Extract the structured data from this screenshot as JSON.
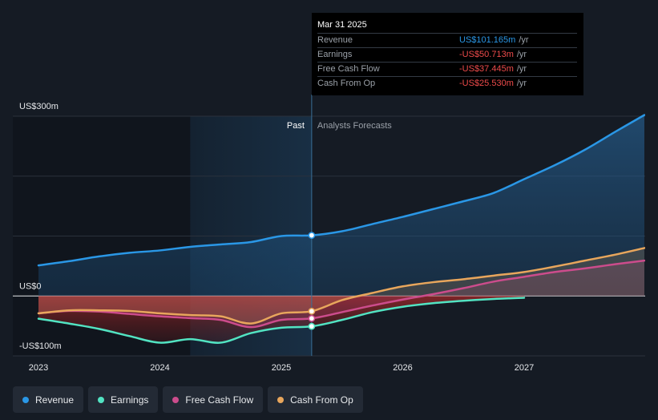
{
  "chart_data": {
    "type": "line",
    "title": "",
    "x_ticks": [
      "2023",
      "2024",
      "2025",
      "2026",
      "2027"
    ],
    "y_ticks": [
      "US$300m",
      "US$0",
      "-US$100m"
    ],
    "ylim": [
      -100,
      300
    ],
    "xlim": [
      2022.83,
      2027.99
    ],
    "divider_x": 2025.25,
    "past_highlight_start": 2024.25,
    "past_label": "Past",
    "forecast_label": "Analysts Forecasts",
    "series": [
      {
        "name": "Revenue",
        "color": "#2a97e6",
        "points": [
          [
            2023.0,
            51
          ],
          [
            2023.25,
            58
          ],
          [
            2023.5,
            66
          ],
          [
            2023.75,
            72
          ],
          [
            2024.0,
            76
          ],
          [
            2024.25,
            82
          ],
          [
            2024.5,
            86
          ],
          [
            2024.75,
            90
          ],
          [
            2025.0,
            100
          ],
          [
            2025.25,
            101.165
          ],
          [
            2025.5,
            108
          ],
          [
            2025.75,
            120
          ],
          [
            2026.0,
            132
          ],
          [
            2026.25,
            145
          ],
          [
            2026.5,
            158
          ],
          [
            2026.75,
            172
          ],
          [
            2027.0,
            195
          ],
          [
            2027.25,
            218
          ],
          [
            2027.5,
            244
          ],
          [
            2027.75,
            274
          ],
          [
            2027.99,
            302
          ]
        ]
      },
      {
        "name": "Earnings",
        "color": "#52e3c2",
        "points": [
          [
            2023.0,
            -38
          ],
          [
            2023.25,
            -46
          ],
          [
            2023.5,
            -55
          ],
          [
            2023.75,
            -67
          ],
          [
            2024.0,
            -78
          ],
          [
            2024.25,
            -72
          ],
          [
            2024.5,
            -78
          ],
          [
            2024.75,
            -62
          ],
          [
            2025.0,
            -53
          ],
          [
            2025.25,
            -50.713
          ],
          [
            2025.5,
            -40
          ],
          [
            2025.75,
            -27
          ],
          [
            2026.0,
            -18
          ],
          [
            2026.25,
            -12
          ],
          [
            2026.5,
            -8
          ],
          [
            2026.75,
            -5
          ],
          [
            2027.0,
            -3
          ]
        ]
      },
      {
        "name": "Free Cash Flow",
        "color": "#cc4c8c",
        "points": [
          [
            2023.0,
            -29
          ],
          [
            2023.25,
            -25
          ],
          [
            2023.5,
            -26
          ],
          [
            2023.75,
            -30
          ],
          [
            2024.0,
            -34
          ],
          [
            2024.25,
            -37
          ],
          [
            2024.5,
            -40
          ],
          [
            2024.75,
            -52
          ],
          [
            2025.0,
            -40
          ],
          [
            2025.25,
            -37.445
          ],
          [
            2025.5,
            -27
          ],
          [
            2025.75,
            -16
          ],
          [
            2026.0,
            -6
          ],
          [
            2026.25,
            3
          ],
          [
            2026.5,
            13
          ],
          [
            2026.75,
            24
          ],
          [
            2027.0,
            32
          ],
          [
            2027.25,
            40
          ],
          [
            2027.5,
            46
          ],
          [
            2027.75,
            53
          ],
          [
            2027.99,
            59
          ]
        ]
      },
      {
        "name": "Cash From Op",
        "color": "#e8a65c",
        "points": [
          [
            2023.0,
            -29
          ],
          [
            2023.25,
            -24
          ],
          [
            2023.5,
            -24
          ],
          [
            2023.75,
            -25
          ],
          [
            2024.0,
            -29
          ],
          [
            2024.25,
            -32
          ],
          [
            2024.5,
            -34
          ],
          [
            2024.75,
            -46
          ],
          [
            2025.0,
            -29
          ],
          [
            2025.25,
            -25.53
          ],
          [
            2025.5,
            -7
          ],
          [
            2025.75,
            5
          ],
          [
            2026.0,
            16
          ],
          [
            2026.25,
            23
          ],
          [
            2026.5,
            28
          ],
          [
            2026.75,
            34
          ],
          [
            2027.0,
            40
          ],
          [
            2027.25,
            49
          ],
          [
            2027.5,
            59
          ],
          [
            2027.75,
            69
          ],
          [
            2027.99,
            80
          ]
        ]
      }
    ]
  },
  "tooltip": {
    "date": "Mar 31 2025",
    "rows": [
      {
        "label": "Revenue",
        "value": "US$101.165m",
        "unit": "/yr",
        "negative": false
      },
      {
        "label": "Earnings",
        "value": "-US$50.713m",
        "unit": "/yr",
        "negative": true
      },
      {
        "label": "Free Cash Flow",
        "value": "-US$37.445m",
        "unit": "/yr",
        "negative": true
      },
      {
        "label": "Cash From Op",
        "value": "-US$25.530m",
        "unit": "/yr",
        "negative": true
      }
    ]
  },
  "legend": {
    "items": [
      {
        "label": "Revenue",
        "color": "#2a97e6"
      },
      {
        "label": "Earnings",
        "color": "#52e3c2"
      },
      {
        "label": "Free Cash Flow",
        "color": "#cc4c8c"
      },
      {
        "label": "Cash From Op",
        "color": "#e8a65c"
      }
    ]
  }
}
